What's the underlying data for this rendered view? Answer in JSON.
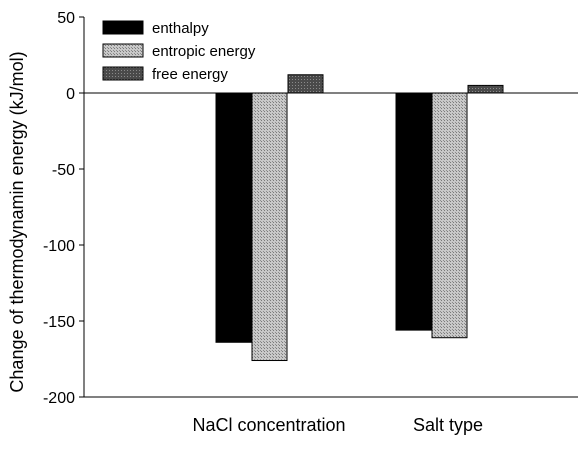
{
  "chart_data": {
    "type": "bar",
    "title": "",
    "xlabel": "",
    "ylabel": "Change of thermodynamin energy (kJ/mol)",
    "categories": [
      "NaCl concentration",
      "Salt type"
    ],
    "series": [
      {
        "name": "enthalpy",
        "values": [
          -164,
          -156
        ],
        "color": "#000000",
        "pattern": "solid"
      },
      {
        "name": "entropic energy",
        "values": [
          -176,
          -161
        ],
        "color": "#b4b4b4",
        "pattern": "fine-dots"
      },
      {
        "name": "free energy",
        "values": [
          12,
          5
        ],
        "color": "#555555",
        "pattern": "dark-dots"
      }
    ],
    "ylim": [
      -200,
      50
    ],
    "yticks": [
      50,
      0,
      -50,
      -100,
      -150,
      -200
    ],
    "ytick_labels": [
      "50",
      "0",
      "-50",
      "-100",
      "-150",
      "-200"
    ],
    "zero_line": true,
    "grid": false,
    "legend_position": "top-left"
  }
}
